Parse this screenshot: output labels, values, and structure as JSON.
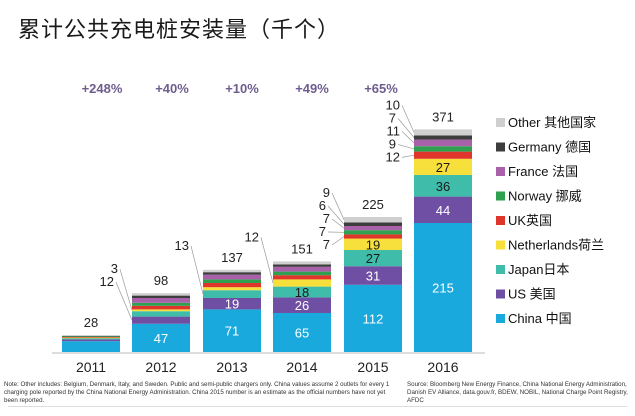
{
  "title": "累计公共充电桩安装量（千个）",
  "chart_data": {
    "type": "bar",
    "stacked": true,
    "title": "累计公共充电桩安装量（千个）",
    "xlabel": "",
    "ylabel": "",
    "categories": [
      "2011",
      "2012",
      "2013",
      "2014",
      "2015",
      "2016"
    ],
    "totals": [
      28,
      98,
      137,
      151,
      225,
      371
    ],
    "growth_labels": [
      "+248%",
      "+40%",
      "+10%",
      "+49%",
      "+65%"
    ],
    "series": [
      {
        "name": "China 中国",
        "color": "#1aa9dd",
        "values": [
          18,
          47,
          71,
          65,
          112,
          215
        ],
        "labeled": [
          false,
          true,
          true,
          true,
          true,
          true
        ]
      },
      {
        "name": "US 美国",
        "color": "#6f4fa3",
        "values": [
          3,
          12,
          19,
          26,
          31,
          44
        ],
        "labeled": [
          false,
          true,
          true,
          true,
          true,
          true
        ]
      },
      {
        "name": "Japan日本",
        "color": "#3fbcaa",
        "values": [
          2,
          9,
          13,
          18,
          27,
          36
        ],
        "labeled": [
          false,
          false,
          true,
          true,
          true,
          true
        ]
      },
      {
        "name": "Netherlands荷兰",
        "color": "#f7e03c",
        "values": [
          1,
          3,
          5,
          12,
          19,
          27
        ],
        "labeled": [
          false,
          true,
          false,
          true,
          true,
          true
        ]
      },
      {
        "name": "UK英国",
        "color": "#e0352b",
        "values": [
          1,
          6,
          7,
          7,
          7,
          12
        ],
        "labeled": [
          false,
          false,
          false,
          false,
          true,
          true
        ]
      },
      {
        "name": "Norway 挪威",
        "color": "#2ea04f",
        "values": [
          1,
          5,
          6,
          6,
          7,
          9
        ],
        "labeled": [
          false,
          false,
          false,
          false,
          true,
          true
        ]
      },
      {
        "name": "France 法国",
        "color": "#a961a9",
        "values": [
          0,
          8,
          8,
          8,
          7,
          11
        ],
        "labeled": [
          false,
          false,
          false,
          false,
          true,
          true
        ]
      },
      {
        "name": "Germany 德国",
        "color": "#3d3d3d",
        "values": [
          1,
          4,
          4,
          4,
          6,
          7
        ],
        "labeled": [
          false,
          false,
          false,
          false,
          true,
          true
        ]
      },
      {
        "name": "Other 其他国家",
        "color": "#cfcfcf",
        "values": [
          1,
          4,
          4,
          5,
          9,
          10
        ],
        "labeled": [
          false,
          false,
          false,
          false,
          true,
          true
        ]
      }
    ],
    "legend_position": "right",
    "legend": [
      "Other 其他国家",
      "Germany 德国",
      "France 法国",
      "Norway 挪威",
      "UK英国",
      "Netherlands荷兰",
      "Japan日本",
      "US 美国",
      "China 中国"
    ],
    "ylim": [
      0,
      400
    ],
    "grid": false
  },
  "notes": {
    "left": "Note: Other includes: Belgium, Denmark, Italy, and Sweden. Public and semi-public chargers only. China values assume 2 outlets for every 1 charging pole reported by the China National Energy Administration. China 2015 number is an estimate as the official numbers have not yet been reported.",
    "right": "Source: Bloomberg New Energy Finance, China National Energy Administration, Danish EV Alliance, data.gouv.fr, BDEW, NOBIL, National Charge Point Registry, AFDC"
  }
}
